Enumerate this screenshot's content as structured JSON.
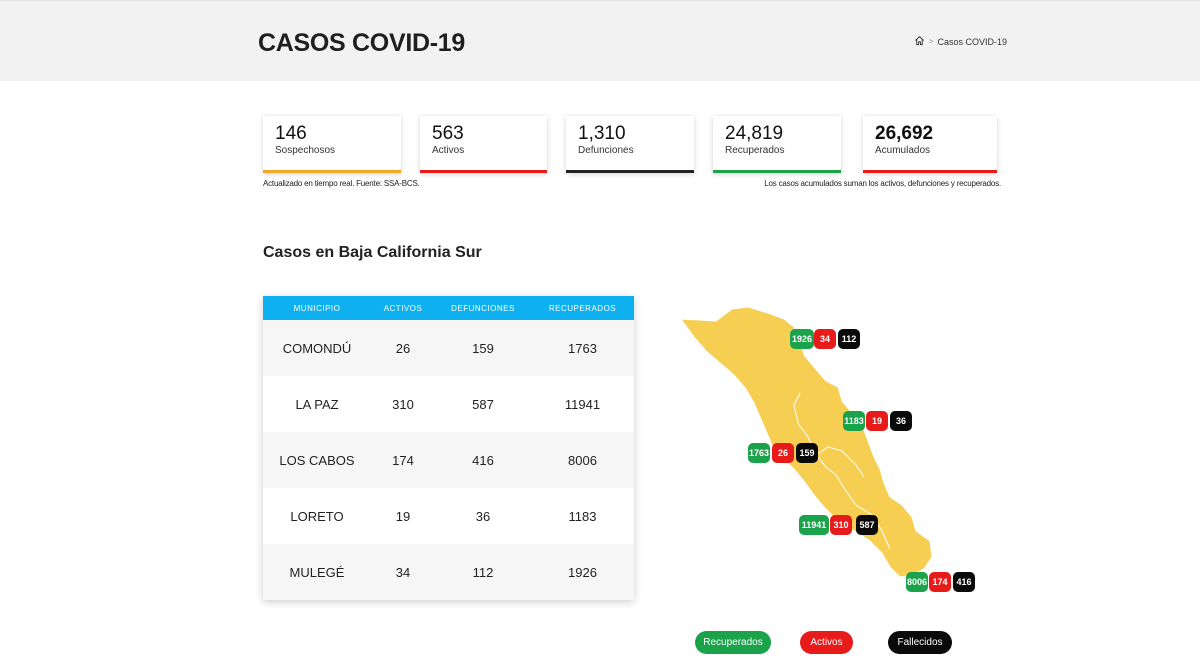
{
  "header": {
    "title": "CASOS COVID-19",
    "breadcrumb": {
      "home_icon": "home-icon",
      "separator": ">",
      "current": "Casos COVID-19"
    }
  },
  "stats": [
    {
      "value": "146",
      "label": "Sospechosos",
      "color": "#f5a623",
      "bold": false
    },
    {
      "value": "563",
      "label": "Activos",
      "color": "#e81b1b",
      "bold": false
    },
    {
      "value": "1,310",
      "label": "Defunciones",
      "color": "#222222",
      "bold": false
    },
    {
      "value": "24,819",
      "label": "Recuperados",
      "color": "#1aa34a",
      "bold": false
    },
    {
      "value": "26,692",
      "label": "Acumulados",
      "color": "#e81b1b",
      "bold": true
    }
  ],
  "notes": {
    "left": "Actualizado en tiempo real. Fuente: SSA-BCS.",
    "right": "Los casos acumulados suman los activos, defunciones y recuperados."
  },
  "section_title": "Casos en Baja California Sur",
  "table": {
    "headers": [
      "MUNICIPIO",
      "ACTIVOS",
      "DEFUNCIONES",
      "RECUPERADOS"
    ],
    "rows": [
      [
        "COMONDÚ",
        "26",
        "159",
        "1763"
      ],
      [
        "LA PAZ",
        "310",
        "587",
        "11941"
      ],
      [
        "LOS CABOS",
        "174",
        "416",
        "8006"
      ],
      [
        "LORETO",
        "19",
        "36",
        "1183"
      ],
      [
        "MULEGÉ",
        "34",
        "112",
        "1926"
      ]
    ]
  },
  "map": {
    "fill_color": "#f5ce52",
    "municipios": [
      {
        "name": "Mulegé",
        "recuperados": "1926",
        "activos": "34",
        "fallecidos": "112"
      },
      {
        "name": "Loreto",
        "recuperados": "1183",
        "activos": "19",
        "fallecidos": "36"
      },
      {
        "name": "Comondú",
        "recuperados": "1763",
        "activos": "26",
        "fallecidos": "159"
      },
      {
        "name": "La Paz",
        "recuperados": "11941",
        "activos": "310",
        "fallecidos": "587"
      },
      {
        "name": "Los Cabos",
        "recuperados": "8006",
        "activos": "174",
        "fallecidos": "416"
      }
    ]
  },
  "legend": [
    "Recuperados",
    "Activos",
    "Fallecidos"
  ]
}
